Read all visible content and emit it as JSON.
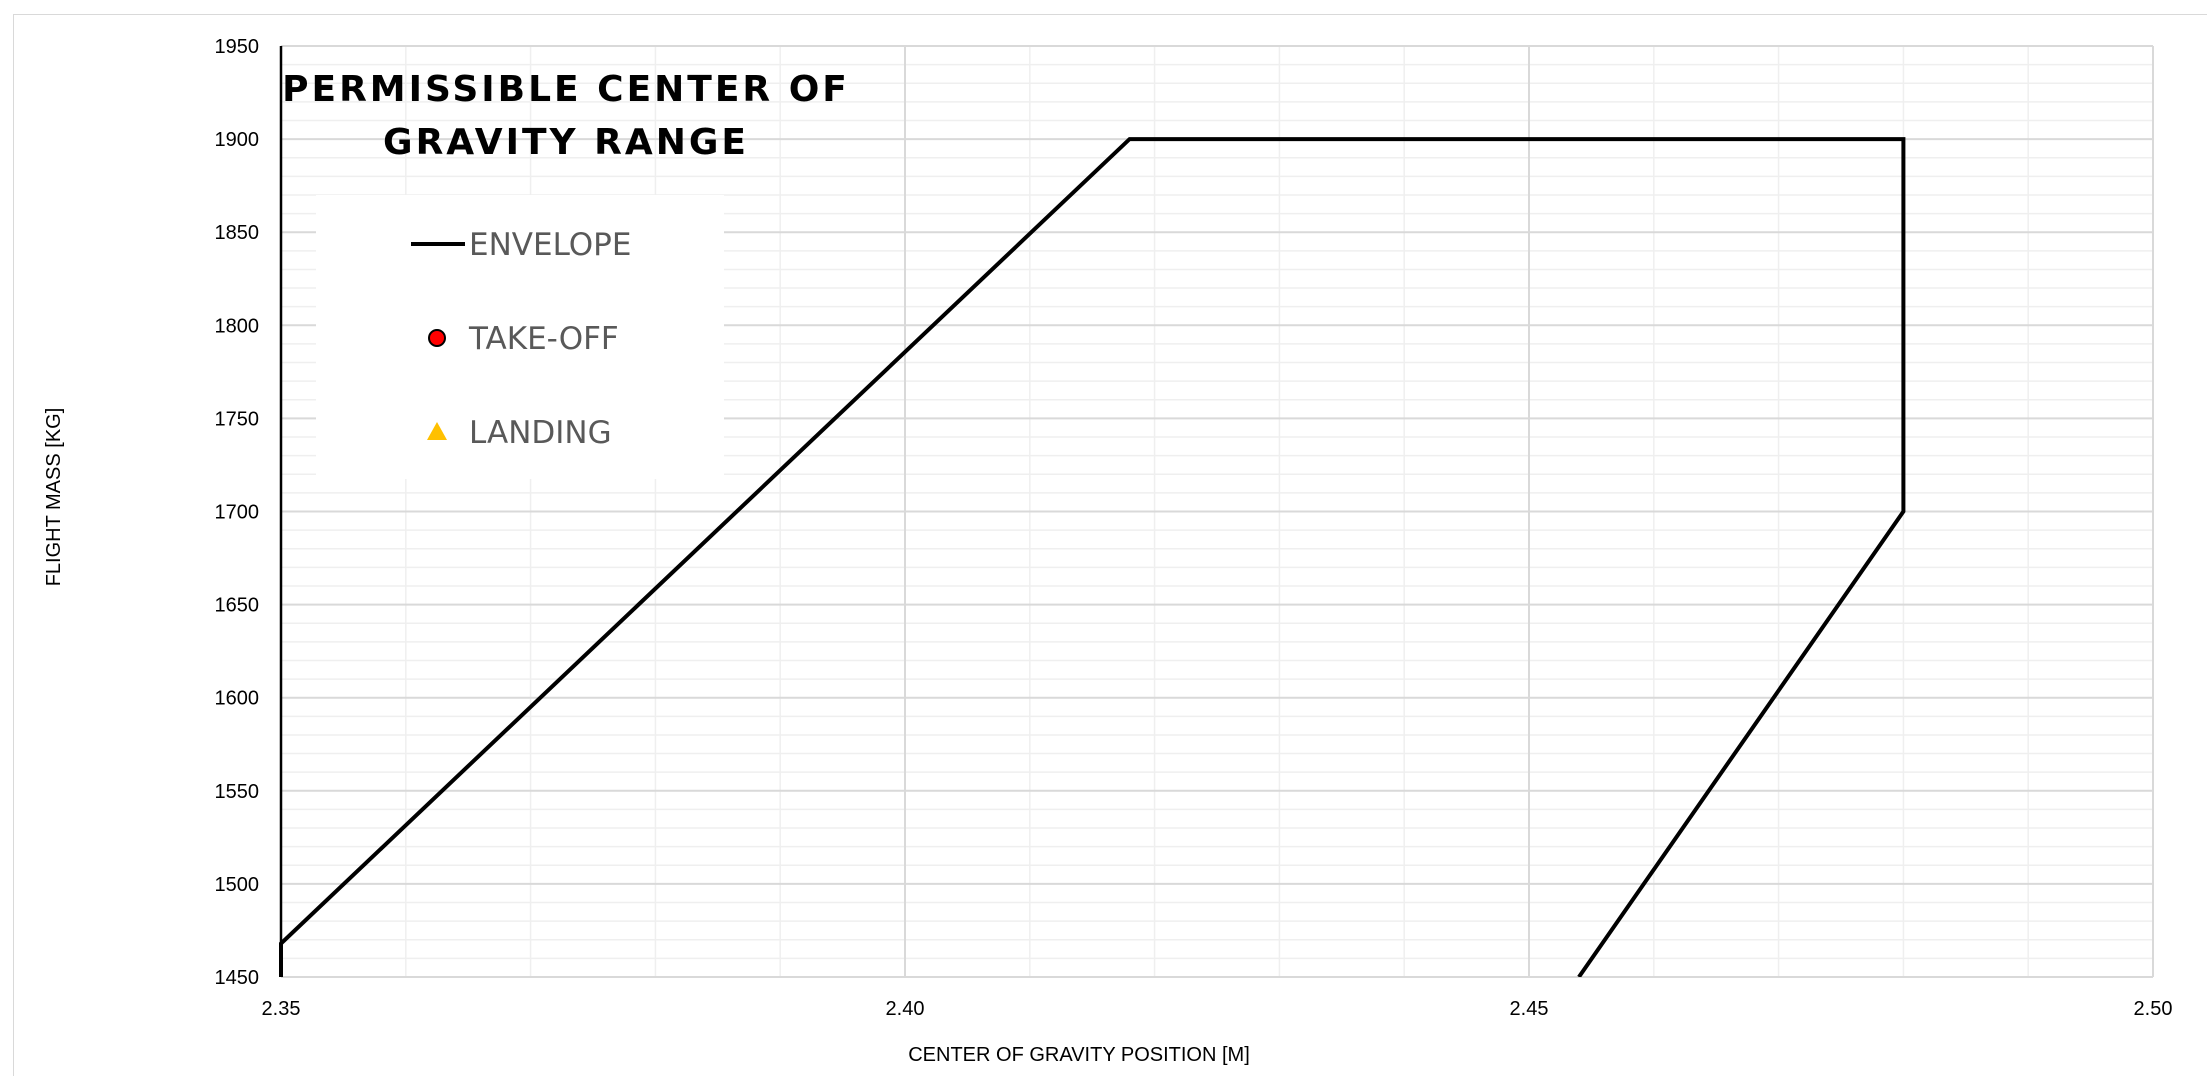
{
  "chart_data": {
    "type": "line",
    "title_lines": [
      "PERMISSIBLE CENTER OF",
      "GRAVITY RANGE"
    ],
    "xlabel": "CENTER OF GRAVITY POSITION [M]",
    "ylabel": "FLIGHT MASS [KG]",
    "xlim": [
      2.35,
      2.5
    ],
    "ylim": [
      1450,
      1950
    ],
    "xticks": [
      "2.35",
      "2.40",
      "2.45",
      "2.50"
    ],
    "yticks": [
      "1450",
      "1500",
      "1550",
      "1600",
      "1650",
      "1700",
      "1750",
      "1800",
      "1850",
      "1900",
      "1950"
    ],
    "grid": true,
    "legend_position": "top-left",
    "series": [
      {
        "name": "ENVELOPE",
        "marker": "line",
        "color": "#000000",
        "points": [
          {
            "x": 2.35,
            "y": 1450
          },
          {
            "x": 2.35,
            "y": 1468
          },
          {
            "x": 2.418,
            "y": 1900
          },
          {
            "x": 2.48,
            "y": 1900
          },
          {
            "x": 2.48,
            "y": 1700
          },
          {
            "x": 2.454,
            "y": 1450
          }
        ]
      },
      {
        "name": "TAKE-OFF",
        "marker": "circle",
        "color": "#ff0000",
        "points": []
      },
      {
        "name": "LANDING",
        "marker": "triangle",
        "color": "#ffc000",
        "points": []
      }
    ]
  }
}
